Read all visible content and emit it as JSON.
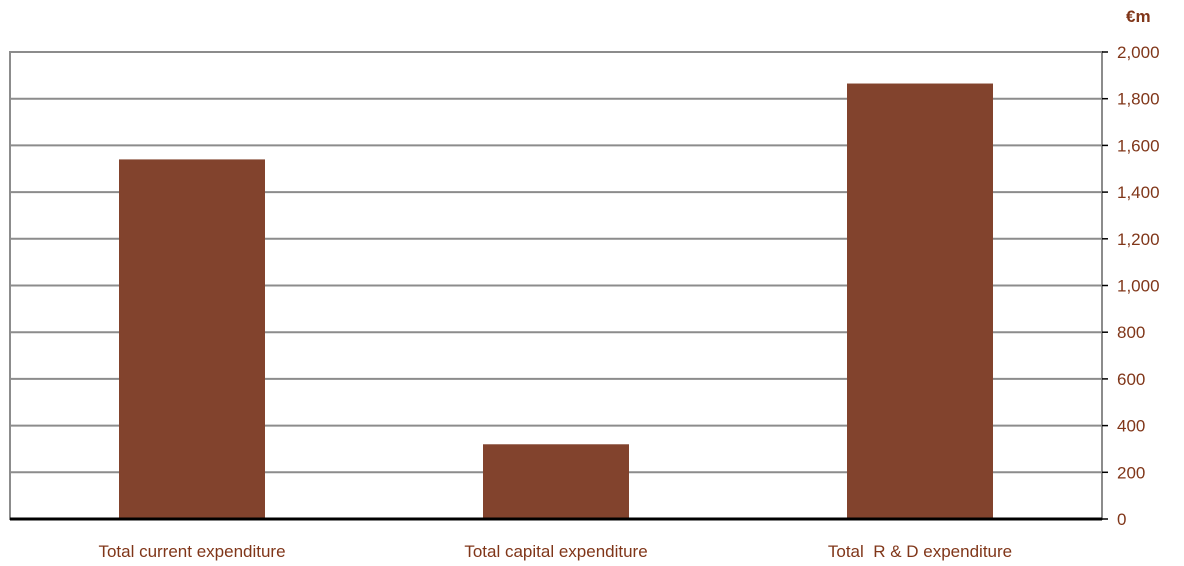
{
  "colors": {
    "bar": "#82432D",
    "text": "#803619",
    "grid": "#8c8c8c",
    "axis": "#000000"
  },
  "chart_data": {
    "type": "bar",
    "title": "",
    "unit_label": "€m",
    "categories": [
      "Total current expenditure",
      "Total capital expenditure",
      "Total  R & D expenditure"
    ],
    "values": [
      1540,
      320,
      1865
    ],
    "ylim": [
      0,
      2000
    ],
    "yticks": [
      0,
      200,
      400,
      600,
      800,
      1000,
      1200,
      1400,
      1600,
      1800,
      2000
    ],
    "ytick_labels": [
      "0",
      "200",
      "400",
      "600",
      "800",
      "1,000",
      "1,200",
      "1,400",
      "1,600",
      "1,800",
      "2,000"
    ],
    "grid": true,
    "y_axis_side": "right",
    "legend": "none"
  }
}
